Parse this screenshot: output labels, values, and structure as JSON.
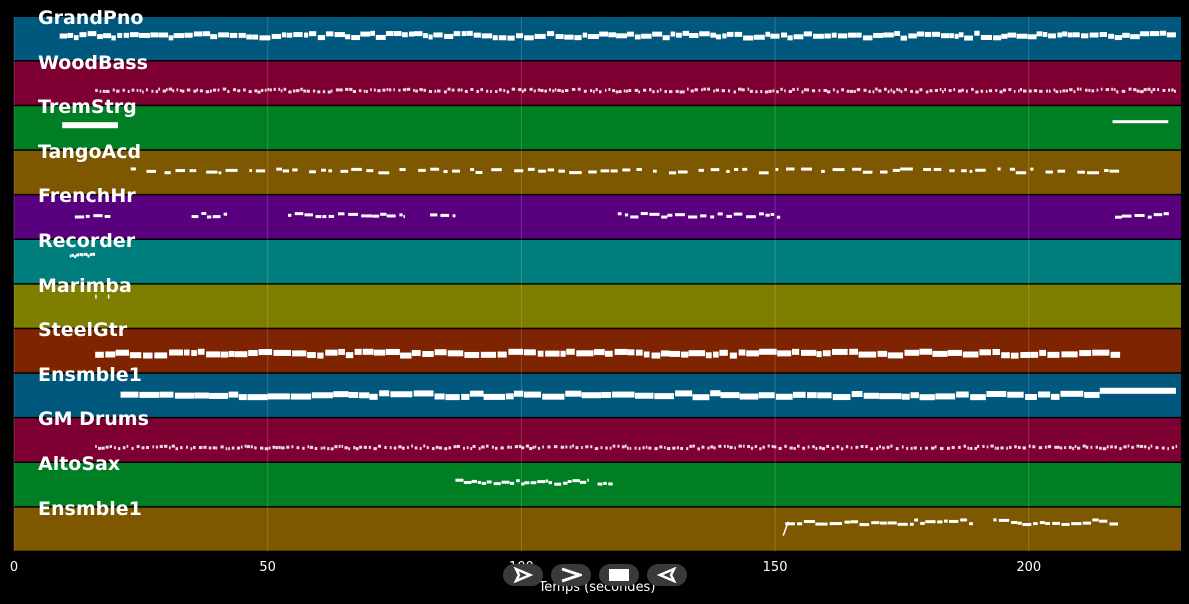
{
  "tracks": [
    {
      "name": "GrandPno",
      "color": "#00587e",
      "pattern": "dense-chords"
    },
    {
      "name": "WoodBass",
      "color": "#7e0032",
      "pattern": "dots"
    },
    {
      "name": "TremStrg",
      "color": "#007e24",
      "pattern": "long-bars"
    },
    {
      "name": "TangoAcd",
      "color": "#7e5800",
      "pattern": "sparse"
    },
    {
      "name": "FrenchHr",
      "color": "#58007e",
      "pattern": "phrases"
    },
    {
      "name": "Recorder",
      "color": "#007e7e",
      "pattern": "short-intro"
    },
    {
      "name": "Marimba",
      "color": "#7e7e00",
      "pattern": "tiny"
    },
    {
      "name": "SteelGtr",
      "color": "#7e2400",
      "pattern": "thick-line"
    },
    {
      "name": "Ensmble1",
      "color": "#00587e",
      "pattern": "thick-line-rising"
    },
    {
      "name": "GM Drums",
      "color": "#7e0032",
      "pattern": "dots"
    },
    {
      "name": "AltoSax",
      "color": "#007e24",
      "pattern": "one-phrase"
    },
    {
      "name": "Ensmble1",
      "color": "#7e5800",
      "pattern": "late-melody"
    }
  ],
  "axis": {
    "label": "Temps (secondes)",
    "ticks": [
      0,
      50,
      100,
      150,
      200
    ],
    "range": [
      0,
      230
    ]
  },
  "transport": {
    "play_icon": "play-icon",
    "forward_icon": "forward-icon",
    "stop_icon": "stop-icon",
    "back_icon": "back-icon"
  }
}
